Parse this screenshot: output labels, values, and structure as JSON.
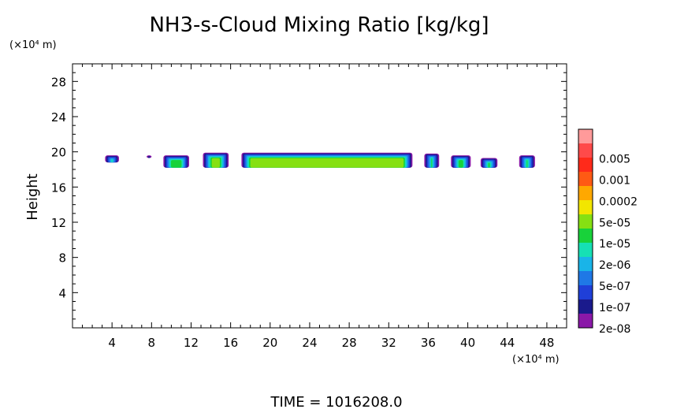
{
  "chart_data": {
    "type": "heatmap",
    "title": "NH3-s-Cloud Mixing Ratio [kg/kg]",
    "xlabel": "",
    "ylabel": "Height",
    "x_unit_label": "(×10⁴ m)",
    "y_unit_label": "(×10⁴ m)",
    "footer": "TIME = 1016208.0",
    "xlim": [
      0,
      50
    ],
    "ylim": [
      0,
      30
    ],
    "x_ticks": [
      4,
      8,
      12,
      16,
      20,
      24,
      28,
      32,
      36,
      40,
      44,
      48
    ],
    "y_ticks": [
      4,
      8,
      12,
      16,
      20,
      24,
      28
    ],
    "grid": false,
    "legend_position": "right",
    "colorbar": {
      "labels": [
        "0.005",
        "0.001",
        "0.0002",
        "5e-05",
        "1e-05",
        "2e-06",
        "5e-07",
        "1e-07",
        "2e-08"
      ],
      "colors_bottom_to_top": [
        "#8a18a8",
        "#1a1a8c",
        "#1f3fd8",
        "#1f78e6",
        "#19b4e8",
        "#16e0b4",
        "#18d23a",
        "#86e012",
        "#f2e600",
        "#ffa800",
        "#ff5a14",
        "#ff2a1a",
        "#ff4a4a",
        "#ff9a9a"
      ]
    },
    "cloud_blobs": [
      {
        "x_start": 3.3,
        "x_end": 4.7,
        "y_bottom": 18.8,
        "y_top": 19.6,
        "max_level": 5
      },
      {
        "x_start": 7.5,
        "x_end": 8.0,
        "y_bottom": 19.3,
        "y_top": 19.6,
        "max_level": 1
      },
      {
        "x_start": 9.2,
        "x_end": 11.8,
        "y_bottom": 18.2,
        "y_top": 19.6,
        "max_level": 6
      },
      {
        "x_start": 13.2,
        "x_end": 15.8,
        "y_bottom": 18.2,
        "y_top": 19.9,
        "max_level": 7
      },
      {
        "x_start": 17.1,
        "x_end": 34.4,
        "y_bottom": 18.2,
        "y_top": 19.9,
        "max_level": 7
      },
      {
        "x_start": 35.6,
        "x_end": 37.1,
        "y_bottom": 18.2,
        "y_top": 19.8,
        "max_level": 6
      },
      {
        "x_start": 38.3,
        "x_end": 40.3,
        "y_bottom": 18.2,
        "y_top": 19.6,
        "max_level": 6
      },
      {
        "x_start": 41.3,
        "x_end": 43.0,
        "y_bottom": 18.2,
        "y_top": 19.3,
        "max_level": 6
      },
      {
        "x_start": 45.2,
        "x_end": 46.8,
        "y_bottom": 18.2,
        "y_top": 19.6,
        "max_level": 6
      }
    ]
  }
}
